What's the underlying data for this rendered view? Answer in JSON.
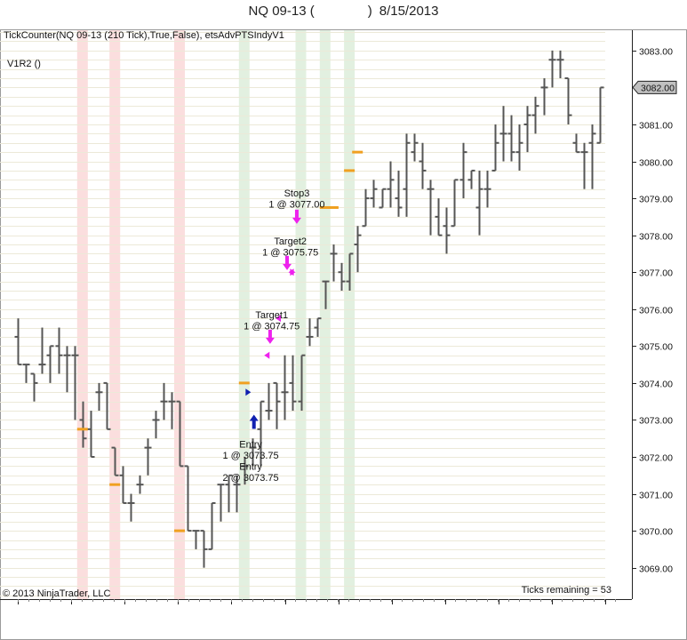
{
  "window": {
    "title_symbol": "NQ 09-13 (",
    "title_suffix": ")",
    "title_date": "8/15/2013"
  },
  "chart_data": {
    "type": "ohlc",
    "indicator_label": "TickCounter(NQ 09-13 (210 Tick),True,False), etsAdvPTSIndyV1",
    "strategy_label": "V1R2 ()",
    "copyright": "© 2013 NinjaTrader, LLC",
    "ticks_remaining": "Ticks remaining = 53",
    "last_price": "3082.00",
    "ylim": [
      3068.15,
      3083.55
    ],
    "y_ticks": [
      "3069.00",
      "3070.00",
      "3071.00",
      "3072.00",
      "3073.00",
      "3074.00",
      "3075.00",
      "3076.00",
      "3077.00",
      "3078.00",
      "3079.00",
      "3080.00",
      "3081.00",
      "3082.00",
      "3083.00"
    ],
    "colors": {
      "bar": "#555555",
      "pivot": "#f0a020",
      "red_zone": "#fbdede",
      "green_zone": "#e2f0e0",
      "magenta": "#ee22ee",
      "blue": "#1020b0",
      "grid": "#ece9d8"
    },
    "bars": [
      {
        "o": 3075.25,
        "h": 3075.75,
        "l": 3074.5,
        "c": 3074.5
      },
      {
        "o": 3074.5,
        "h": 3074.5,
        "l": 3074.0,
        "c": 3074.5
      },
      {
        "o": 3074.25,
        "h": 3074.25,
        "l": 3073.5,
        "c": 3074.0
      },
      {
        "o": 3074.5,
        "h": 3075.5,
        "l": 3074.25,
        "c": 3074.5
      },
      {
        "o": 3074.75,
        "h": 3075.0,
        "l": 3074.0,
        "c": 3075.0
      },
      {
        "o": 3075.0,
        "h": 3075.5,
        "l": 3074.25,
        "c": 3074.75
      },
      {
        "o": 3074.75,
        "h": 3075.0,
        "l": 3073.75,
        "c": 3074.75
      },
      {
        "o": 3074.75,
        "h": 3075.0,
        "l": 3073.0,
        "c": 3074.75
      },
      {
        "o": 3073.0,
        "h": 3073.5,
        "l": 3072.25,
        "c": 3072.5
      },
      {
        "o": 3072.75,
        "h": 3073.25,
        "l": 3072.0,
        "c": 3072.0
      },
      {
        "o": 3073.75,
        "h": 3074.0,
        "l": 3073.25,
        "c": 3073.75
      },
      {
        "o": 3074.0,
        "h": 3074.0,
        "l": 3072.75,
        "c": 3072.75
      },
      {
        "o": 3072.25,
        "h": 3072.25,
        "l": 3071.5,
        "c": 3071.5
      },
      {
        "o": 3071.5,
        "h": 3071.75,
        "l": 3070.75,
        "c": 3070.75
      },
      {
        "o": 3070.75,
        "h": 3071.0,
        "l": 3070.25,
        "c": 3070.75
      },
      {
        "o": 3071.25,
        "h": 3071.5,
        "l": 3071.0,
        "c": 3071.25
      },
      {
        "o": 3072.25,
        "h": 3072.5,
        "l": 3071.5,
        "c": 3072.25
      },
      {
        "o": 3073.0,
        "h": 3073.25,
        "l": 3072.5,
        "c": 3073.0
      },
      {
        "o": 3073.5,
        "h": 3074.0,
        "l": 3073.0,
        "c": 3073.5
      },
      {
        "o": 3073.5,
        "h": 3073.75,
        "l": 3072.75,
        "c": 3073.5
      },
      {
        "o": 3073.5,
        "h": 3073.5,
        "l": 3071.75,
        "c": 3071.75
      },
      {
        "o": 3071.75,
        "h": 3071.75,
        "l": 3070.0,
        "c": 3070.0
      },
      {
        "o": 3070.0,
        "h": 3070.0,
        "l": 3069.5,
        "c": 3070.0
      },
      {
        "o": 3070.0,
        "h": 3070.0,
        "l": 3069.0,
        "c": 3069.5
      },
      {
        "o": 3069.5,
        "h": 3070.75,
        "l": 3069.5,
        "c": 3070.75
      },
      {
        "o": 3071.25,
        "h": 3071.25,
        "l": 3070.25,
        "c": 3071.25
      },
      {
        "o": 3071.25,
        "h": 3071.5,
        "l": 3070.5,
        "c": 3071.5
      },
      {
        "o": 3071.25,
        "h": 3071.5,
        "l": 3070.5,
        "c": 3071.25
      },
      {
        "o": 3071.75,
        "h": 3072.0,
        "l": 3071.25,
        "c": 3071.75
      },
      {
        "o": 3072.25,
        "h": 3072.5,
        "l": 3071.75,
        "c": 3072.25
      },
      {
        "o": 3072.75,
        "h": 3073.5,
        "l": 3071.75,
        "c": 3073.5
      },
      {
        "o": 3073.25,
        "h": 3074.0,
        "l": 3073.0,
        "c": 3073.25
      },
      {
        "o": 3074.0,
        "h": 3074.0,
        "l": 3072.75,
        "c": 3073.5
      },
      {
        "o": 3073.75,
        "h": 3074.75,
        "l": 3073.0,
        "c": 3073.75
      },
      {
        "o": 3074.0,
        "h": 3074.75,
        "l": 3073.25,
        "c": 3073.5
      },
      {
        "o": 3073.5,
        "h": 3074.75,
        "l": 3073.25,
        "c": 3074.75
      },
      {
        "o": 3075.25,
        "h": 3075.75,
        "l": 3075.0,
        "c": 3075.25
      },
      {
        "o": 3075.5,
        "h": 3075.75,
        "l": 3075.25,
        "c": 3075.75
      },
      {
        "o": 3076.75,
        "h": 3076.75,
        "l": 3076.0,
        "c": 3076.75
      },
      {
        "o": 3077.5,
        "h": 3077.75,
        "l": 3076.75,
        "c": 3077.5
      },
      {
        "o": 3077.0,
        "h": 3077.25,
        "l": 3076.5,
        "c": 3076.75
      },
      {
        "o": 3076.75,
        "h": 3077.5,
        "l": 3076.5,
        "c": 3077.5
      },
      {
        "o": 3077.75,
        "h": 3078.25,
        "l": 3077.0,
        "c": 3078.0
      },
      {
        "o": 3078.25,
        "h": 3079.25,
        "l": 3078.25,
        "c": 3079.0
      },
      {
        "o": 3079.0,
        "h": 3079.5,
        "l": 3078.75,
        "c": 3079.25
      },
      {
        "o": 3078.75,
        "h": 3079.25,
        "l": 3078.75,
        "c": 3079.25
      },
      {
        "o": 3079.25,
        "h": 3080.0,
        "l": 3078.75,
        "c": 3079.5
      },
      {
        "o": 3079.0,
        "h": 3079.75,
        "l": 3078.5,
        "c": 3078.75
      },
      {
        "o": 3079.25,
        "h": 3080.75,
        "l": 3078.5,
        "c": 3080.5
      },
      {
        "o": 3080.25,
        "h": 3080.75,
        "l": 3080.0,
        "c": 3080.5
      },
      {
        "o": 3080.0,
        "h": 3080.5,
        "l": 3079.25,
        "c": 3079.75
      },
      {
        "o": 3079.25,
        "h": 3079.5,
        "l": 3078.0,
        "c": 3079.25
      },
      {
        "o": 3078.5,
        "h": 3079.0,
        "l": 3078.0,
        "c": 3078.0
      },
      {
        "o": 3078.25,
        "h": 3078.75,
        "l": 3077.5,
        "c": 3078.0
      },
      {
        "o": 3078.25,
        "h": 3079.5,
        "l": 3078.25,
        "c": 3079.5
      },
      {
        "o": 3079.5,
        "h": 3080.5,
        "l": 3079.0,
        "c": 3080.25
      },
      {
        "o": 3079.5,
        "h": 3079.75,
        "l": 3079.25,
        "c": 3079.75
      },
      {
        "o": 3078.75,
        "h": 3079.75,
        "l": 3078.0,
        "c": 3079.25
      },
      {
        "o": 3079.25,
        "h": 3079.75,
        "l": 3078.75,
        "c": 3079.25
      },
      {
        "o": 3079.75,
        "h": 3081.0,
        "l": 3079.75,
        "c": 3080.5
      },
      {
        "o": 3080.75,
        "h": 3081.5,
        "l": 3080.0,
        "c": 3080.75
      },
      {
        "o": 3080.75,
        "h": 3081.25,
        "l": 3080.0,
        "c": 3080.25
      },
      {
        "o": 3080.25,
        "h": 3081.0,
        "l": 3079.75,
        "c": 3080.5
      },
      {
        "o": 3081.0,
        "h": 3081.5,
        "l": 3080.25,
        "c": 3081.25
      },
      {
        "o": 3081.25,
        "h": 3081.75,
        "l": 3080.75,
        "c": 3081.5
      },
      {
        "o": 3082.0,
        "h": 3082.25,
        "l": 3081.25,
        "c": 3082.0
      },
      {
        "o": 3082.75,
        "h": 3083.0,
        "l": 3082.0,
        "c": 3082.75
      },
      {
        "o": 3082.75,
        "h": 3083.0,
        "l": 3082.25,
        "c": 3082.75
      },
      {
        "o": 3082.25,
        "h": 3082.25,
        "l": 3081.0,
        "c": 3081.25
      },
      {
        "o": 3080.5,
        "h": 3080.75,
        "l": 3080.25,
        "c": 3080.25
      },
      {
        "o": 3080.25,
        "h": 3080.5,
        "l": 3079.25,
        "c": 3080.25
      },
      {
        "o": 3080.5,
        "h": 3081.0,
        "l": 3079.25,
        "c": 3080.75
      },
      {
        "o": 3080.5,
        "h": 3082.0,
        "l": 3080.5,
        "c": 3082.0
      }
    ],
    "red_zone_bars": [
      8,
      12,
      20
    ],
    "green_zone_bars": [
      28,
      35,
      38,
      41
    ],
    "pivot_marks": [
      {
        "bar": 8,
        "y": 3072.75
      },
      {
        "bar": 12,
        "y": 3071.25
      },
      {
        "bar": 20,
        "y": 3070.0
      },
      {
        "bar": 28,
        "y": 3074.0
      },
      {
        "bar": 38,
        "y": 3078.75
      },
      {
        "bar": 39,
        "y": 3078.75
      },
      {
        "bar": 41,
        "y": 3079.75
      },
      {
        "bar": 42,
        "y": 3080.25
      }
    ],
    "annotations": [
      {
        "text": "Stop3",
        "bar": 34.5,
        "y": 3079.15
      },
      {
        "text": "1 @ 3077.00",
        "bar": 34.5,
        "y": 3078.85
      },
      {
        "text": "Target2",
        "bar": 33.7,
        "y": 3077.85
      },
      {
        "text": "1 @ 3075.75",
        "bar": 33.7,
        "y": 3077.55
      },
      {
        "text": "Target1",
        "bar": 31.4,
        "y": 3075.85
      },
      {
        "text": "1 @ 3074.75",
        "bar": 31.4,
        "y": 3075.55
      },
      {
        "text": "Entry",
        "bar": 28.8,
        "y": 3072.35
      },
      {
        "text": "1 @ 3073.75",
        "bar": 28.8,
        "y": 3072.05
      },
      {
        "text": "Entry",
        "bar": 28.8,
        "y": 3071.75
      },
      {
        "text": "2 @ 3073.75",
        "bar": 28.8,
        "y": 3071.45
      }
    ],
    "arrows": [
      {
        "type": "up",
        "bar": 29.2,
        "y": 3072.95,
        "color": "blue"
      },
      {
        "type": "down",
        "bar": 31.2,
        "y": 3075.25,
        "color": "magenta"
      },
      {
        "type": "down",
        "bar": 33.3,
        "y": 3077.25,
        "color": "magenta"
      },
      {
        "type": "down",
        "bar": 34.5,
        "y": 3078.5,
        "color": "magenta"
      }
    ],
    "fill_marks": [
      {
        "bar": 28.5,
        "y": 3073.75,
        "dir": "right",
        "color": "blue"
      },
      {
        "bar": 30.8,
        "y": 3074.75,
        "dir": "left",
        "color": "magenta"
      },
      {
        "bar": 32.2,
        "y": 3075.75,
        "dir": "left",
        "color": "magenta"
      },
      {
        "bar": 33.8,
        "y": 3077.0,
        "dir": "left",
        "color": "magenta"
      },
      {
        "bar": 34.0,
        "y": 3077.0,
        "dir": "right",
        "color": "magenta"
      }
    ]
  }
}
